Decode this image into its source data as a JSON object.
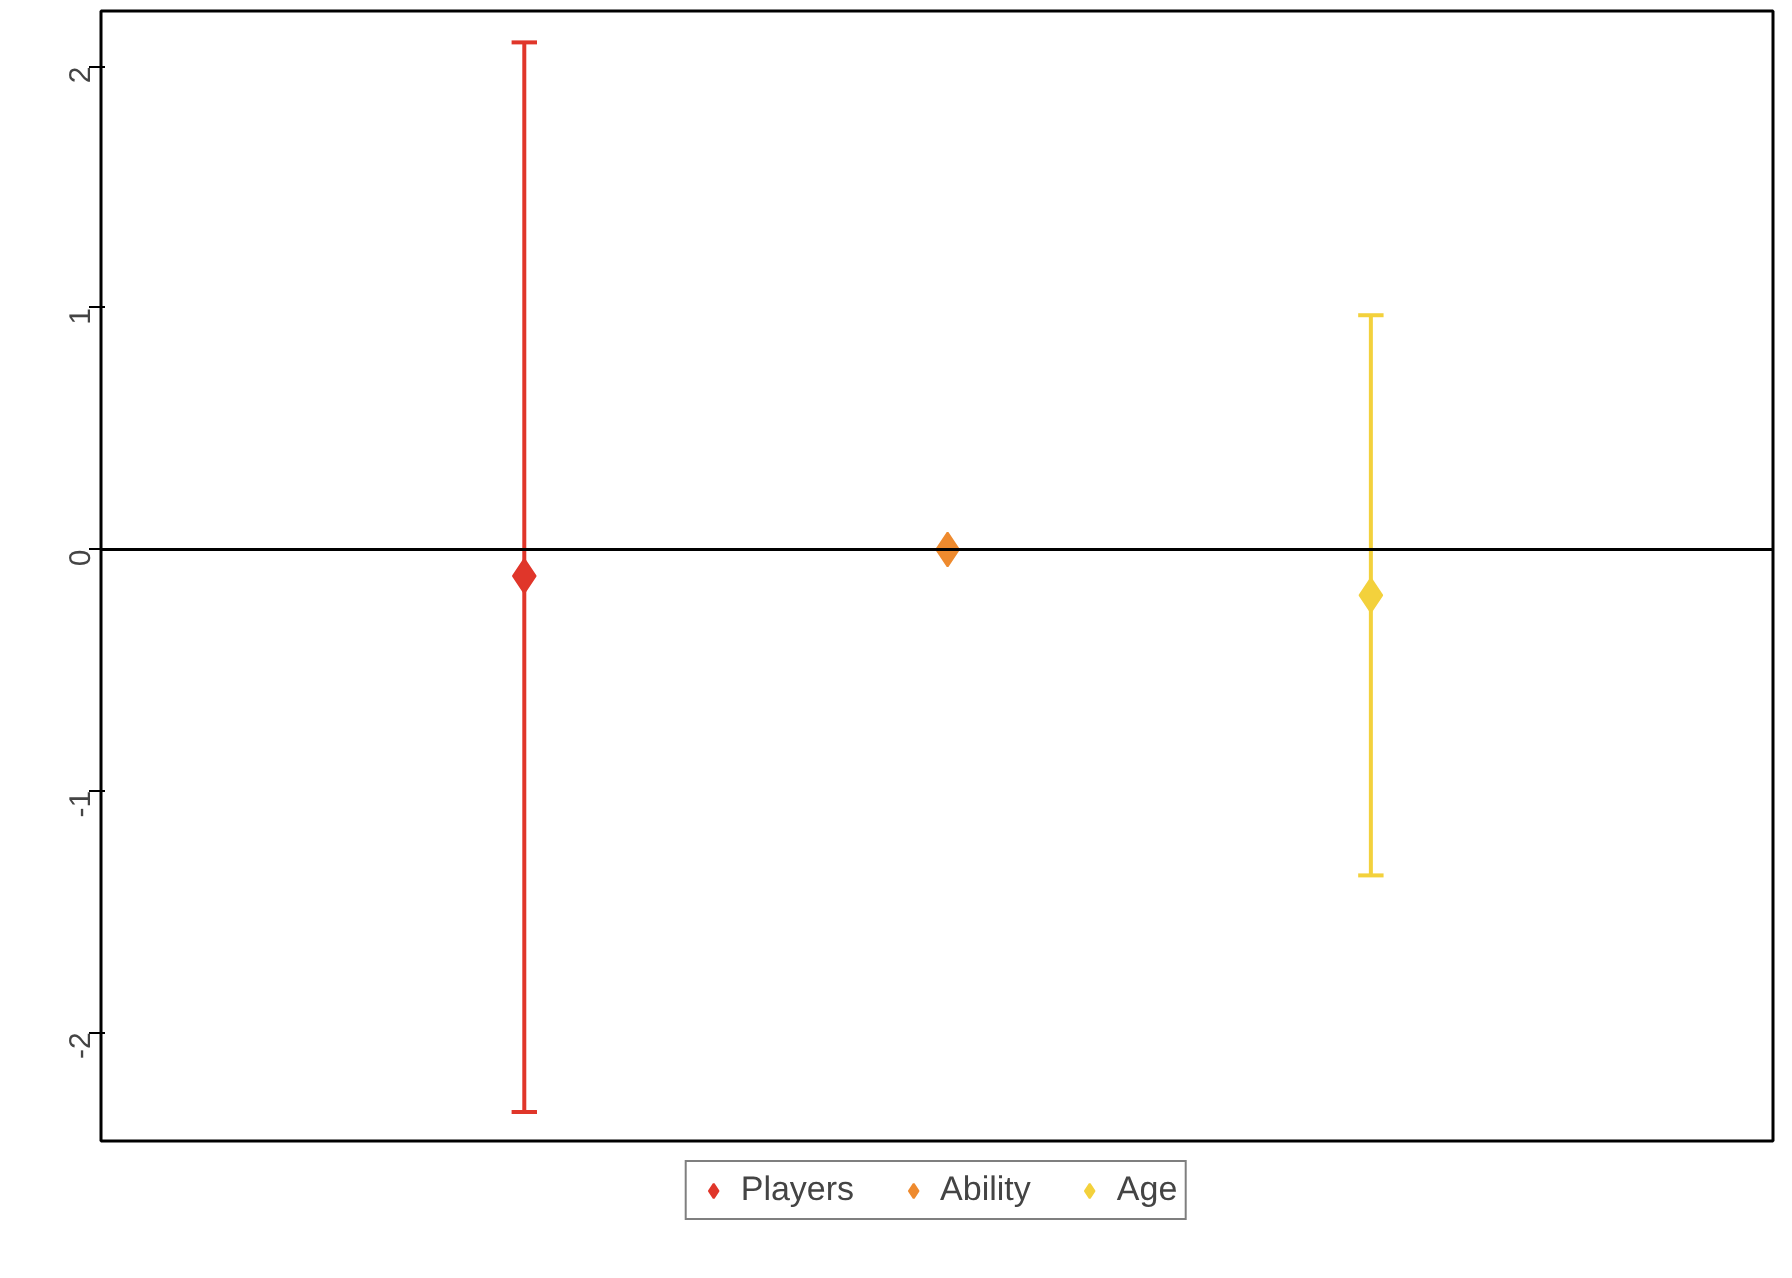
{
  "chart_data": {
    "type": "scatter",
    "categories": [
      null,
      null,
      null
    ],
    "series": [
      {
        "name": "Players",
        "color": "#e0362a",
        "values": [
          -0.11,
          null,
          null
        ],
        "errors": [
          [
            -2.33,
            2.1
          ],
          null,
          null
        ]
      },
      {
        "name": "Ability",
        "color": "#ee8a2e",
        "values": [
          null,
          0.0,
          null
        ],
        "errors": [
          null,
          null,
          null
        ]
      },
      {
        "name": "Age",
        "color": "#f3d13c",
        "values": [
          null,
          null,
          -0.19
        ],
        "errors": [
          null,
          null,
          [
            -1.35,
            0.97
          ]
        ]
      }
    ],
    "ylim": [
      -2.45,
      2.23
    ],
    "yticks": [
      -2,
      -1,
      0,
      1,
      2
    ],
    "ref_lines": [
      {
        "axis": "y",
        "value": 0,
        "color": "#000000"
      }
    ],
    "marker": "diamond",
    "grid": false,
    "legend": "bottom",
    "tick_labels": "y"
  }
}
